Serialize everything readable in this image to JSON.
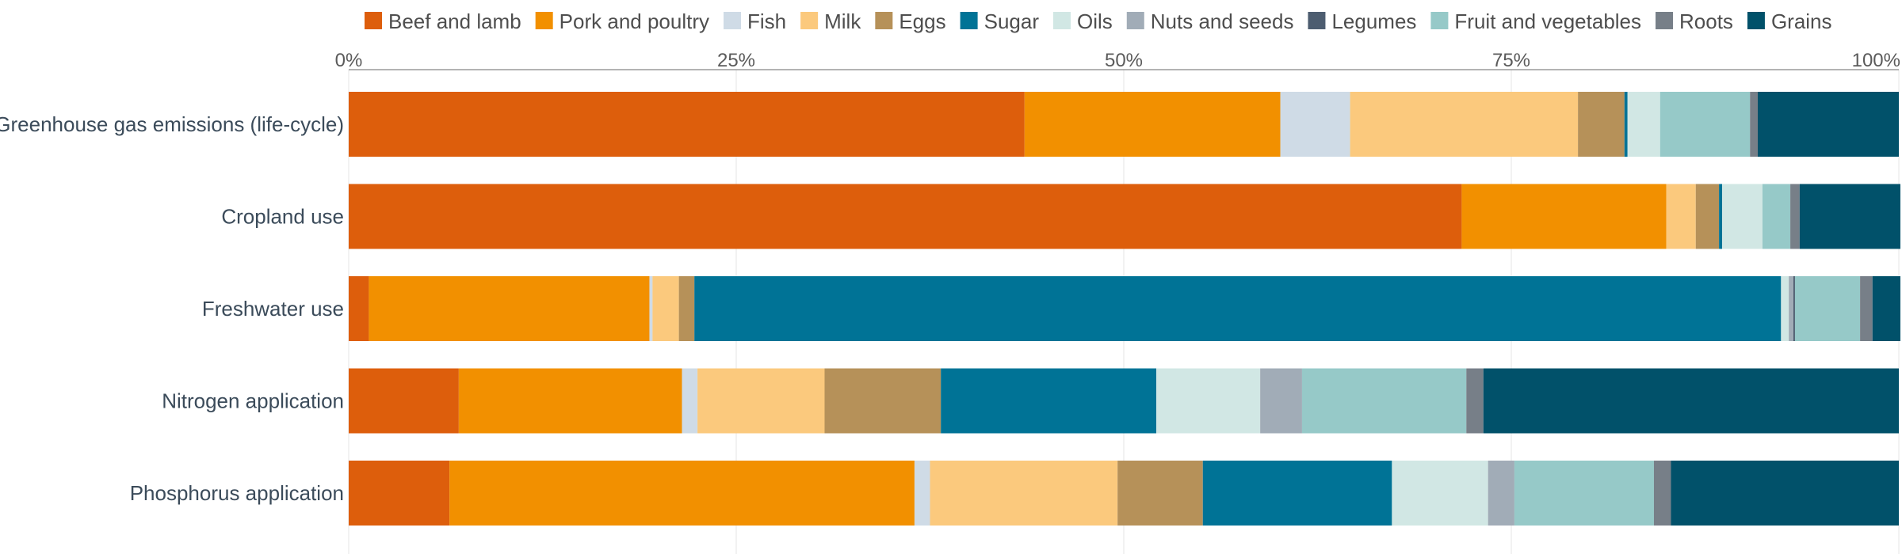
{
  "chart_data": {
    "type": "bar",
    "orientation": "horizontal",
    "stacked": true,
    "normalized": true,
    "categories": [
      "Greenhouse gas emissions (life-cycle)",
      "Cropland use",
      "Freshwater use",
      "Nitrogen application",
      "Phosphorus application"
    ],
    "x_ticks": [
      "0%",
      "25%",
      "50%",
      "75%",
      "100%"
    ],
    "xlim": [
      0,
      100
    ],
    "grid": true,
    "legend_position": "top",
    "series": [
      {
        "name": "Beef and lamb",
        "color": "#dd5e0c",
        "values": [
          43.6,
          71.8,
          1.3,
          7.1,
          6.5
        ]
      },
      {
        "name": "Pork and poultry",
        "color": "#f29000",
        "values": [
          16.5,
          13.2,
          18.1,
          14.4,
          30.0
        ]
      },
      {
        "name": "Fish",
        "color": "#cfdbe6",
        "values": [
          4.5,
          0.0,
          0.2,
          1.0,
          1.0
        ]
      },
      {
        "name": "Milk",
        "color": "#fbc97d",
        "values": [
          14.7,
          1.9,
          1.7,
          8.2,
          12.1
        ]
      },
      {
        "name": "Eggs",
        "color": "#b69159",
        "values": [
          3.0,
          1.5,
          1.0,
          7.5,
          5.5
        ]
      },
      {
        "name": "Sugar",
        "color": "#007396",
        "values": [
          0.2,
          0.2,
          70.1,
          13.9,
          12.2
        ]
      },
      {
        "name": "Oils",
        "color": "#d1e7e4",
        "values": [
          2.1,
          2.6,
          0.5,
          6.7,
          6.2
        ]
      },
      {
        "name": "Nuts and seeds",
        "color": "#a1acb7",
        "values": [
          0.0,
          0.0,
          0.3,
          2.7,
          1.7
        ]
      },
      {
        "name": "Legumes",
        "color": "#4d5d70",
        "values": [
          0.0,
          0.0,
          0.1,
          0.0,
          0.0
        ]
      },
      {
        "name": "Fruit and vegetables",
        "color": "#96c9c8",
        "values": [
          5.8,
          1.8,
          4.2,
          10.6,
          9.0
        ]
      },
      {
        "name": "Roots",
        "color": "#777f88",
        "values": [
          0.5,
          0.6,
          0.8,
          1.1,
          1.1
        ]
      },
      {
        "name": "Grains",
        "color": "#01516a",
        "values": [
          9.1,
          6.5,
          1.8,
          26.8,
          14.7
        ]
      }
    ]
  }
}
